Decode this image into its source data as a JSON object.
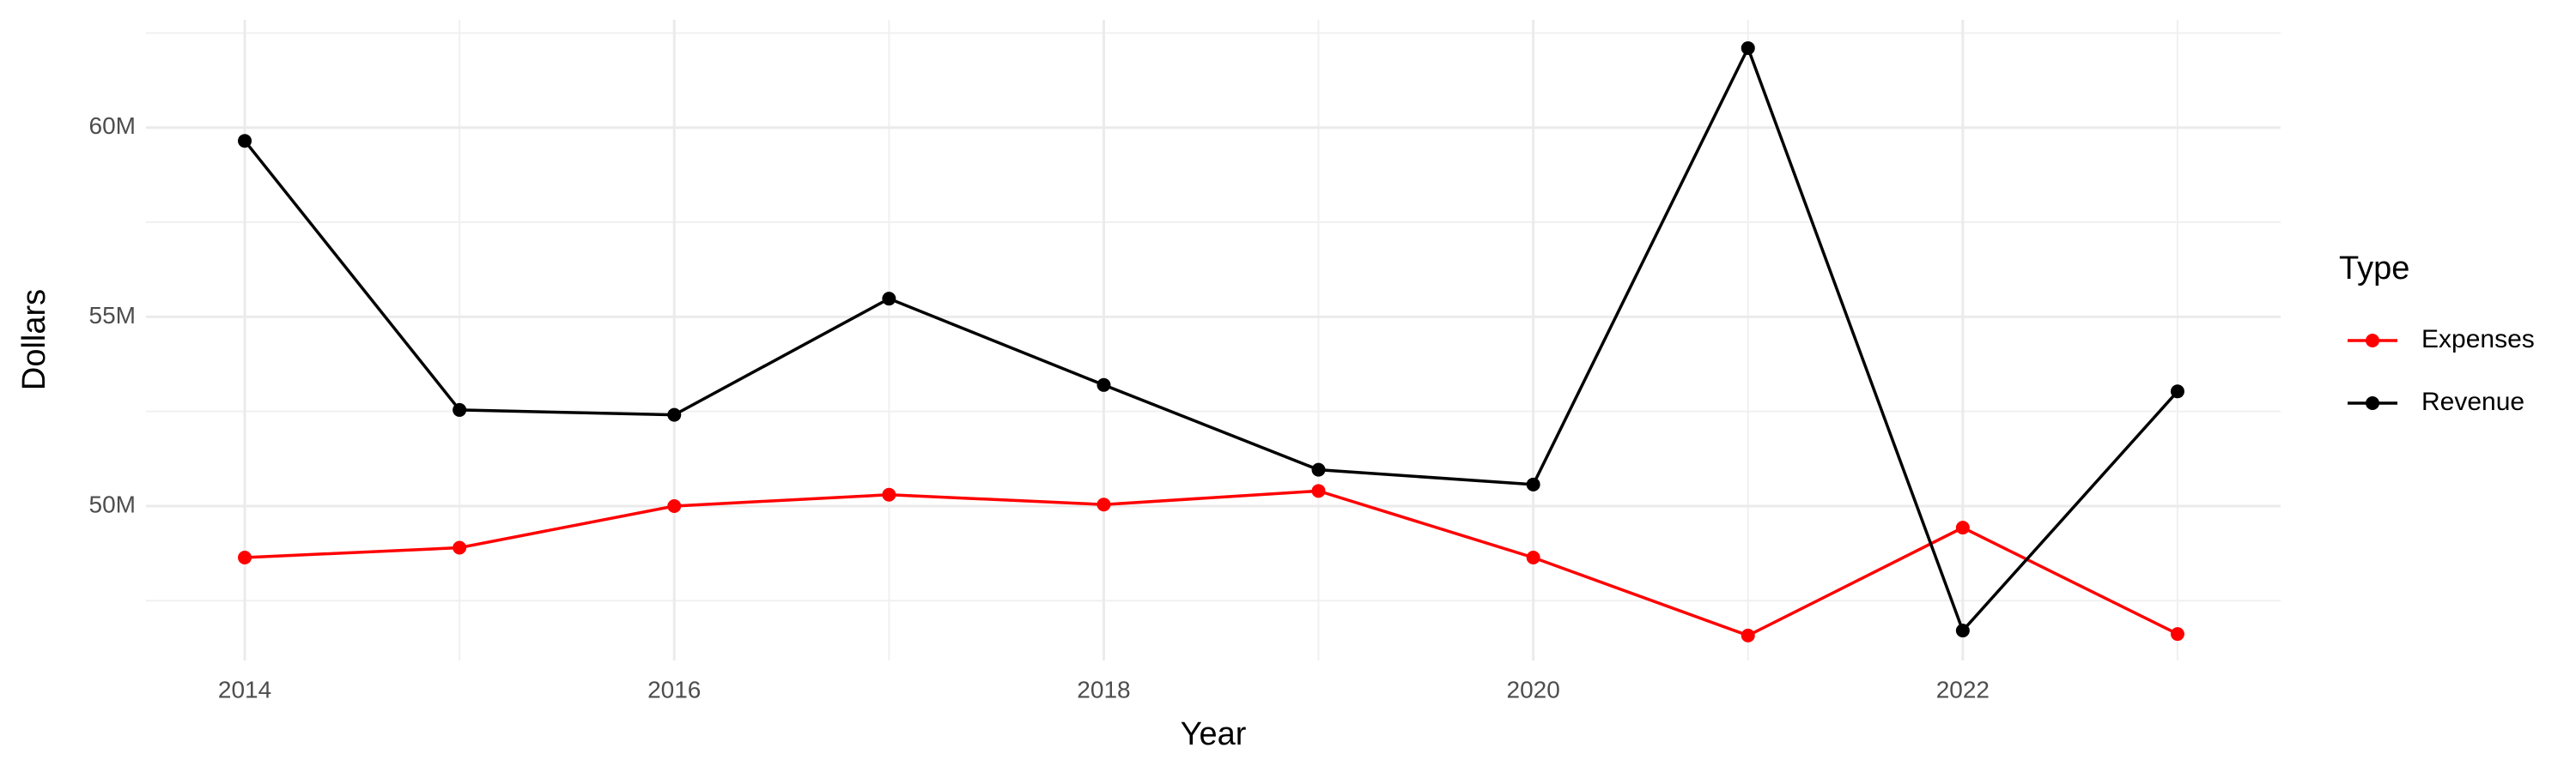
{
  "chart_data": {
    "type": "line",
    "x_label": "Year",
    "y_label": "Dollars",
    "x": [
      2014,
      2015,
      2016,
      2017,
      2018,
      2019,
      2020,
      2021,
      2022,
      2023
    ],
    "series": [
      {
        "name": "Expenses",
        "color": "#ff0000",
        "values": [
          48640000,
          48900000,
          50000000,
          50300000,
          50040000,
          50400000,
          48640000,
          46580000,
          49430000,
          46620000
        ]
      },
      {
        "name": "Revenue",
        "color": "#000000",
        "values": [
          59650000,
          52540000,
          52410000,
          55480000,
          53200000,
          50960000,
          50570000,
          62100000,
          46710000,
          53030000
        ]
      }
    ],
    "xlim": [
      2013.54,
      2023.48
    ],
    "xticks": [
      2014,
      2016,
      2018,
      2020,
      2022
    ],
    "ylim": [
      45920000,
      62850000
    ],
    "yticks": [
      {
        "value": 50000000,
        "label": "50M"
      },
      {
        "value": 55000000,
        "label": "55M"
      },
      {
        "value": 60000000,
        "label": "60M"
      }
    ],
    "grid": true,
    "legend_title": "Type",
    "legend_position": "right"
  }
}
